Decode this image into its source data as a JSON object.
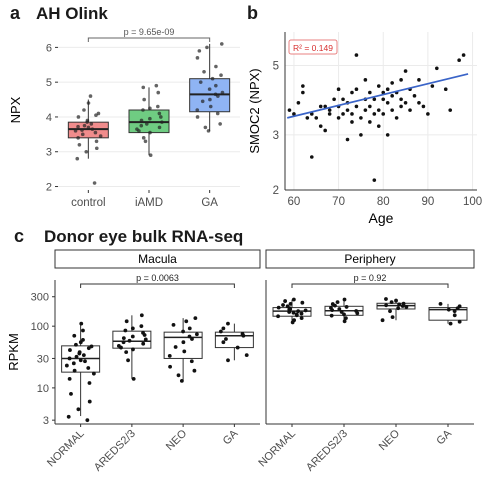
{
  "panels": {
    "a": {
      "letter": "a",
      "title": "AH Olink"
    },
    "b": {
      "letter": "b"
    },
    "c": {
      "letter": "c",
      "title": "Donor eye bulk RNA-seq"
    }
  },
  "colors": {
    "control": "#f08c8c",
    "iamd": "#6fcc82",
    "ga": "#8fb4f4",
    "reg_line": "#3a64c8",
    "r2_text": "#d73030",
    "r2_border": "#e88080"
  },
  "chart_data": [
    {
      "id": "a",
      "type": "box",
      "categories": [
        "control",
        "iAMD",
        "GA"
      ],
      "ylabel": "NPX",
      "xlabel": "",
      "yticks": [
        2,
        3,
        4,
        5,
        6
      ],
      "ylim": [
        1.9,
        6.5
      ],
      "grid": true,
      "annotation": {
        "text": "p = 9.65e-09",
        "from": "control",
        "to": "GA"
      },
      "boxes": [
        {
          "q1": 3.4,
          "median": 3.65,
          "q3": 3.85,
          "wlow": 2.8,
          "whigh": 4.5
        },
        {
          "q1": 3.55,
          "median": 3.85,
          "q3": 4.2,
          "wlow": 2.9,
          "whigh": 4.85
        },
        {
          "q1": 4.15,
          "median": 4.65,
          "q3": 5.1,
          "wlow": 3.6,
          "whigh": 6.1
        }
      ],
      "points": [
        [
          2.1,
          2.8,
          3.0,
          3.1,
          3.2,
          3.3,
          3.4,
          3.45,
          3.5,
          3.55,
          3.6,
          3.62,
          3.65,
          3.7,
          3.72,
          3.75,
          3.8,
          3.85,
          3.9,
          4.0,
          4.05,
          4.1,
          4.2,
          4.4,
          4.6
        ],
        [
          2.9,
          3.3,
          3.4,
          3.55,
          3.6,
          3.65,
          3.7,
          3.75,
          3.8,
          3.85,
          3.9,
          3.95,
          4.0,
          4.1,
          4.2,
          4.25,
          4.3,
          4.5,
          4.7,
          4.85,
          4.9
        ],
        [
          3.6,
          3.7,
          3.8,
          4.0,
          4.1,
          4.2,
          4.3,
          4.45,
          4.5,
          4.6,
          4.65,
          4.7,
          4.8,
          4.9,
          5.0,
          5.1,
          5.2,
          5.3,
          5.45,
          5.7,
          5.9,
          6.0,
          6.1
        ]
      ]
    },
    {
      "id": "b",
      "type": "scatter",
      "xlabel": "Age",
      "ylabel": "SMOC2 (NPX)",
      "xticks": [
        60,
        70,
        80,
        90,
        100
      ],
      "yticks": [
        2,
        3,
        5
      ],
      "xlim": [
        58,
        101
      ],
      "ylim": [
        2.0,
        6.4
      ],
      "log_y": true,
      "grid": true,
      "r2_label": "R² = 0.149",
      "fit": {
        "x0": 58.5,
        "y0": 3.4,
        "x1": 99,
        "y1": 4.7
      },
      "x": [
        59,
        60,
        61,
        62,
        62,
        63,
        64,
        64,
        65,
        66,
        66,
        67,
        67,
        68,
        68,
        69,
        70,
        70,
        70,
        71,
        71,
        72,
        72,
        72,
        73,
        73,
        73,
        74,
        74,
        74,
        75,
        75,
        76,
        76,
        76,
        77,
        77,
        77,
        78,
        78,
        78,
        79,
        79,
        79,
        80,
        80,
        80,
        81,
        81,
        81,
        82,
        82,
        82,
        83,
        83,
        84,
        84,
        84,
        85,
        85,
        86,
        86,
        87,
        88,
        88,
        89,
        90,
        91,
        92,
        94,
        95,
        97,
        98
      ],
      "y": [
        3.6,
        3.5,
        3.8,
        4.3,
        4.1,
        3.4,
        3.5,
        2.55,
        3.4,
        3.7,
        3.2,
        3.7,
        3.1,
        3.5,
        3.6,
        3.9,
        3.4,
        3.7,
        4.2,
        3.5,
        3.9,
        2.9,
        3.6,
        3.8,
        4.1,
        3.3,
        3.5,
        5.4,
        3.7,
        4.2,
        3.4,
        3.0,
        4.5,
        3.6,
        3.9,
        4.1,
        3.3,
        3.7,
        3.5,
        2.15,
        3.9,
        4.3,
        3.6,
        3.2,
        3.9,
        4.1,
        3.5,
        3.0,
        4.2,
        3.8,
        4.0,
        3.6,
        4.4,
        3.4,
        4.1,
        4.5,
        3.7,
        3.9,
        4.8,
        3.8,
        3.6,
        4.2,
        4.0,
        3.8,
        4.5,
        3.7,
        3.5,
        4.3,
        4.9,
        4.2,
        3.6,
        5.2,
        5.4
      ]
    },
    {
      "id": "c",
      "type": "box",
      "ylabel": "RPKM",
      "log_y": true,
      "yticks": [
        3,
        10,
        30,
        100,
        300
      ],
      "ylim": [
        2.6,
        560
      ],
      "grid": false,
      "facets": [
        {
          "label": "Macula",
          "categories": [
            "NORMAL",
            "AREDS2/3",
            "NEO",
            "GA"
          ],
          "annotation": {
            "text": "p = 0.0063",
            "from": "NORMAL",
            "to": "GA"
          },
          "boxes": [
            {
              "q1": 18,
              "median": 30,
              "q3": 48,
              "wlow": 3.5,
              "whigh": 110
            },
            {
              "q1": 44,
              "median": 57,
              "q3": 83,
              "wlow": 14,
              "whigh": 150
            },
            {
              "q1": 30,
              "median": 66,
              "q3": 80,
              "wlow": 13,
              "whigh": 135
            },
            {
              "q1": 45,
              "median": 70,
              "q3": 80,
              "wlow": 28,
              "whigh": 110
            }
          ],
          "points": [
            [
              3,
              3.4,
              4.5,
              6,
              8,
              12,
              14,
              17,
              19,
              21,
              23,
              25,
              27,
              28,
              30,
              32,
              34,
              36,
              38,
              41,
              44,
              47,
              50,
              55,
              60,
              70,
              85,
              110
            ],
            [
              14,
              28,
              38,
              42,
              45,
              48,
              52,
              55,
              58,
              61,
              64,
              68,
              72,
              78,
              85,
              92,
              100,
              120,
              150
            ],
            [
              13,
              16,
              19,
              22,
              27,
              33,
              39,
              46,
              55,
              62,
              68,
              74,
              82,
              92,
              105,
              120,
              135
            ],
            [
              28,
              34,
              45,
              55,
              62,
              70,
              75,
              82,
              92,
              110
            ]
          ]
        },
        {
          "label": "Periphery",
          "categories": [
            "NORMAL",
            "AREDS2/3",
            "NEO",
            "GA"
          ],
          "annotation": {
            "text": "p = 0.92",
            "from": "NORMAL",
            "to": "GA"
          },
          "boxes": [
            {
              "q1": 145,
              "median": 175,
              "q3": 200,
              "wlow": 115,
              "whigh": 270
            },
            {
              "q1": 150,
              "median": 178,
              "q3": 210,
              "wlow": 120,
              "whigh": 270
            },
            {
              "q1": 190,
              "median": 215,
              "q3": 235,
              "wlow": 125,
              "whigh": 275
            },
            {
              "q1": 125,
              "median": 185,
              "q3": 200,
              "wlow": 110,
              "whigh": 230
            }
          ],
          "points": [
            [
              115,
              125,
              135,
              145,
              150,
              155,
              160,
              165,
              170,
              175,
              180,
              185,
              190,
              195,
              200,
              210,
              220,
              230,
              240,
              255,
              270
            ],
            [
              120,
              135,
              148,
              155,
              162,
              170,
              176,
              182,
              190,
              198,
              205,
              215,
              228,
              245,
              270
            ],
            [
              125,
              140,
              175,
              195,
              205,
              212,
              218,
              225,
              232,
              245,
              260,
              275
            ],
            [
              110,
              118,
              150,
              175,
              185,
              195,
              210,
              230
            ]
          ]
        }
      ]
    }
  ]
}
